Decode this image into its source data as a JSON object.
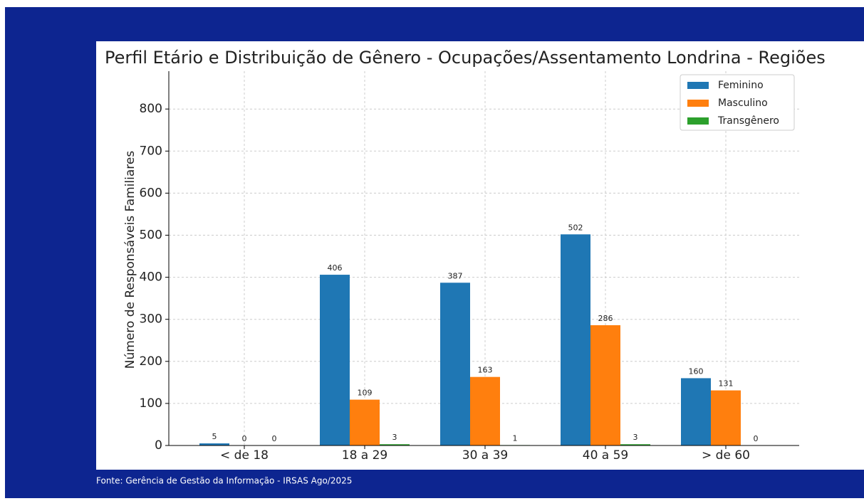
{
  "chart_data": {
    "type": "bar",
    "title": "Perfil Etário e Distribuição de Gênero - Ocupações/Assentamento Londrina - Regiões",
    "y_label": "Número de Responsáveis Familiares",
    "categories": [
      "< de 18",
      "18 a 29",
      "30 a 39",
      "40 a 59",
      "> de 60"
    ],
    "series": [
      {
        "name": "Feminino",
        "color": "#1f77b4",
        "values": [
          5,
          406,
          387,
          502,
          160
        ]
      },
      {
        "name": "Masculino",
        "color": "#ff7f0e",
        "values": [
          0,
          109,
          163,
          286,
          131
        ]
      },
      {
        "name": "Transgênero",
        "color": "#2ca02c",
        "values": [
          0,
          3,
          1,
          3,
          0
        ]
      }
    ],
    "ylim": [
      0,
      890
    ],
    "yticks": [
      0,
      100,
      200,
      300,
      400,
      500,
      600,
      700,
      800
    ],
    "grid": true,
    "legend": "upper right",
    "source": "Fonte: Gerência de Gestão da Informação - IRSAS Ago/2025"
  }
}
